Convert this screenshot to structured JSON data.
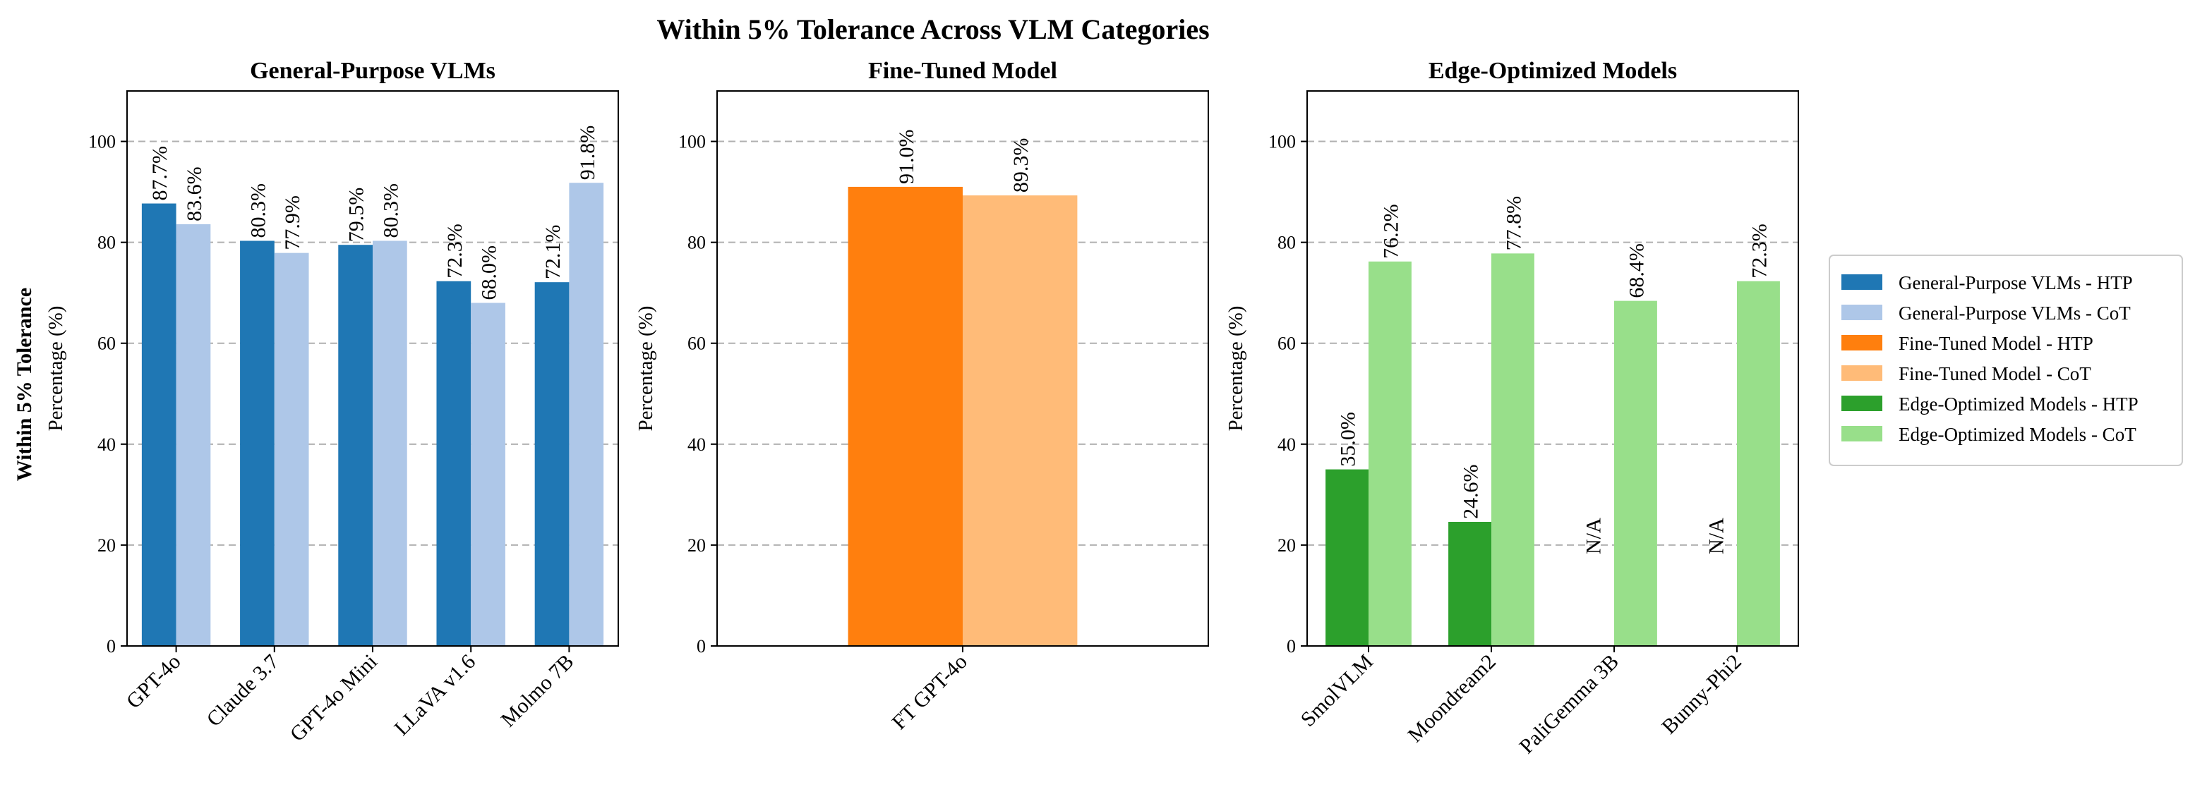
{
  "chart_data": {
    "type": "bar",
    "suptitle": "Within 5% Tolerance Across VLM Categories",
    "row_label": "Within 5% Tolerance",
    "ylabel": "Percentage (%)",
    "ylim": [
      0,
      110
    ],
    "yticks": [
      0,
      20,
      40,
      60,
      80,
      100
    ],
    "grid": true,
    "legend_position": "right",
    "colors": {
      "gp_htp": "#1f77b4",
      "gp_cot": "#aec7e8",
      "ft_htp": "#ff7f0e",
      "ft_cot": "#ffbb78",
      "edge_htp": "#2ca02c",
      "edge_cot": "#98df8a"
    },
    "legend": [
      {
        "label": "General-Purpose VLMs - HTP",
        "color": "#1f77b4"
      },
      {
        "label": "General-Purpose VLMs - CoT",
        "color": "#aec7e8"
      },
      {
        "label": "Fine-Tuned Model - HTP",
        "color": "#ff7f0e"
      },
      {
        "label": "Fine-Tuned Model - CoT",
        "color": "#ffbb78"
      },
      {
        "label": "Edge-Optimized Models - HTP",
        "color": "#2ca02c"
      },
      {
        "label": "Edge-Optimized Models - CoT",
        "color": "#98df8a"
      }
    ],
    "panels": [
      {
        "title": "General-Purpose VLMs",
        "categories": [
          "GPT-4o",
          "Claude 3.7",
          "GPT-4o Mini",
          "LLaVA v1.6",
          "Molmo 7B"
        ],
        "series": [
          {
            "name": "HTP",
            "color": "#1f77b4",
            "values": [
              87.7,
              80.3,
              79.5,
              72.3,
              72.1
            ],
            "labels": [
              "87.7%",
              "80.3%",
              "79.5%",
              "72.3%",
              "72.1%"
            ]
          },
          {
            "name": "CoT",
            "color": "#aec7e8",
            "values": [
              83.6,
              77.9,
              80.3,
              68.0,
              91.8
            ],
            "labels": [
              "83.6%",
              "77.9%",
              "80.3%",
              "68.0%",
              "91.8%"
            ]
          }
        ]
      },
      {
        "title": "Fine-Tuned Model",
        "categories": [
          "FT GPT-4o"
        ],
        "series": [
          {
            "name": "HTP",
            "color": "#ff7f0e",
            "values": [
              91.0
            ],
            "labels": [
              "91.0%"
            ]
          },
          {
            "name": "CoT",
            "color": "#ffbb78",
            "values": [
              89.3
            ],
            "labels": [
              "89.3%"
            ]
          }
        ]
      },
      {
        "title": "Edge-Optimized Models",
        "categories": [
          "SmolVLM",
          "Moondream2",
          "PaliGemma 3B",
          "Bunny-Phi2"
        ],
        "series": [
          {
            "name": "HTP",
            "color": "#2ca02c",
            "values": [
              35.0,
              24.6,
              null,
              null
            ],
            "labels": [
              "35.0%",
              "24.6%",
              "N/A",
              "N/A"
            ]
          },
          {
            "name": "CoT",
            "color": "#98df8a",
            "values": [
              76.2,
              77.8,
              68.4,
              72.3
            ],
            "labels": [
              "76.2%",
              "77.8%",
              "68.4%",
              "72.3%"
            ]
          }
        ]
      }
    ]
  }
}
